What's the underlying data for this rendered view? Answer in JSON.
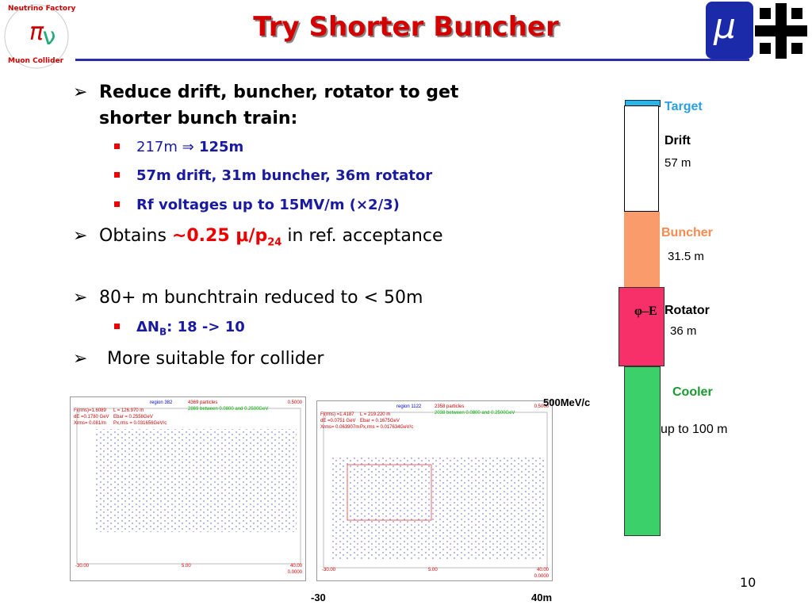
{
  "header": {
    "title": "Try Shorter Buncher",
    "logo_left": {
      "top": "Neutrino Factory",
      "bottom": "Muon Collider"
    },
    "logo_right": "μ"
  },
  "bullets": [
    {
      "text": "Reduce drift, buncher, rotator to get shorter bunch train:",
      "sub": [
        {
          "parts": [
            "217m ⇒",
            "125m"
          ]
        },
        {
          "text": "57m drift, 31m buncher, 36m rotator"
        },
        {
          "text": "Rf voltages up to 15MV/m (×2/3)"
        }
      ]
    },
    {
      "parts": [
        "Obtains",
        "~0.25 μ/p",
        "24",
        "in ref. acceptance"
      ]
    },
    {
      "text": "80+ m bunchtrain reduced to < 50m",
      "sub": [
        {
          "parts": [
            "ΔN",
            "B",
            ": 18 -> 10"
          ]
        }
      ]
    },
    {
      "text": "More suitable for collider"
    }
  ],
  "diagram": {
    "target": "Target",
    "drift": "Drift",
    "drift_len": "57 m",
    "buncher": "Buncher",
    "buncher_len": "31.5 m",
    "phase": "φ–E",
    "rotator": "Rotator",
    "rotator_len": "36 m",
    "cooler": "Cooler",
    "cooler_len": "up to 100 m"
  },
  "plots": [
    {
      "region": "region  382",
      "particles": "4369 particles",
      "between": "2869 between 0.0800 and 0.2500GeV",
      "ymax": "0.5000",
      "stats": [
        "Fi(rms)=1.6089",
        "L = 126.970 m",
        "dE =0.1780 GeV",
        "Ebar =  0.2558GeV",
        "Xrms= 0.081/m",
        "Px,rms = 0.031656GeV/c"
      ],
      "xmin": "-30.00",
      "xmid": "5.00",
      "xmax": "40.00",
      "ymin": "0.0000"
    },
    {
      "region": "region  1122",
      "particles": "2358 particles",
      "between": "2038 between 0.0800 and 0.2500GeV",
      "ymax": "0.5000",
      "stats": [
        "Fi(rms) =1.4187",
        "L = 219.220 m",
        "dE =0.0751 GeV",
        "Ebar =  0.1675GeV",
        "Xrms= 0.063907m",
        "Px,rms = 0.017634GeV/c"
      ],
      "xmin": "-30.00",
      "xmid": "5.00",
      "xmax": "40.00",
      "ymin": "0.0000"
    }
  ],
  "annotations": {
    "momentum": "500MeV/c",
    "x_left": "-30",
    "x_right": "40m",
    "page": "10"
  }
}
